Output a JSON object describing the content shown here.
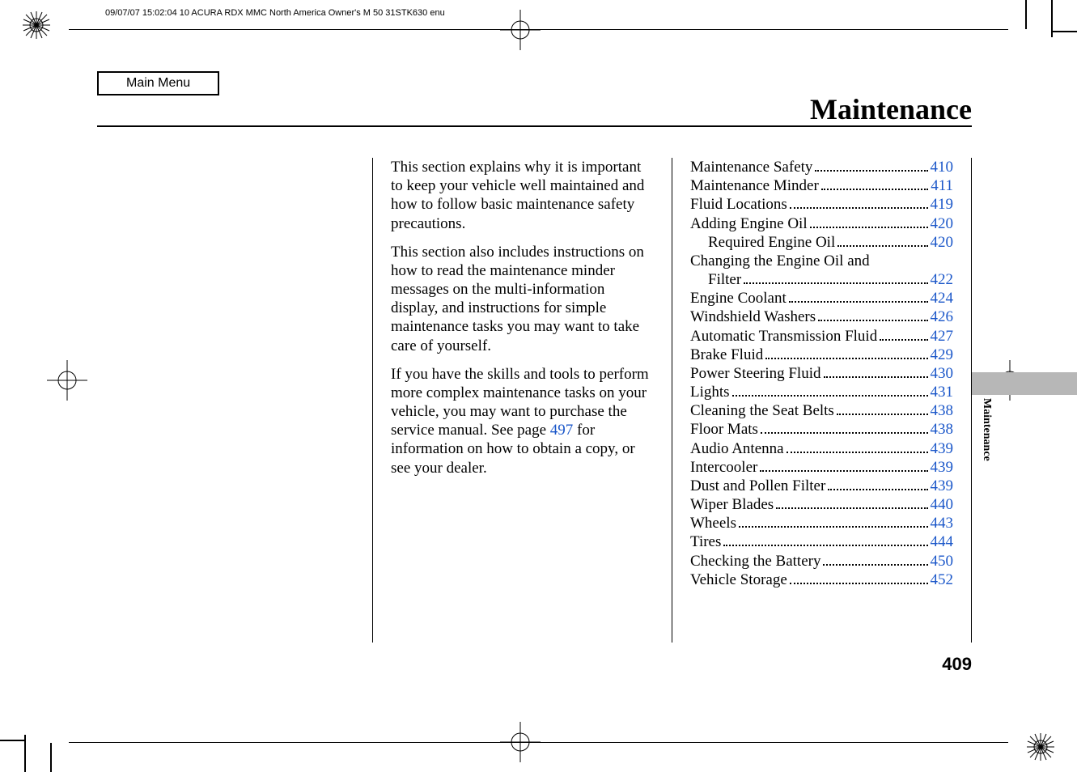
{
  "print_header": "09/07/07 15:02:04   10 ACURA RDX MMC North America Owner's M 50 31STK630 enu",
  "main_menu_label": "Main Menu",
  "section_title": "Maintenance",
  "side_tab_label": "Maintenance",
  "page_number": "409",
  "link_color": "#1b57c9",
  "body": {
    "para1": "This section explains why it is important to keep your vehicle well maintained and how to follow basic maintenance safety precautions.",
    "para2": "This section also includes instructions on how to read the maintenance minder messages on the multi-information display, and instructions for simple maintenance tasks you may want to take care of yourself.",
    "para3_a": "If you have the skills and tools to perform more complex maintenance tasks on your vehicle, you may want to purchase the service manual. See page ",
    "para3_link": "497",
    "para3_b": " for information on how to obtain a copy, or see your dealer."
  },
  "toc": [
    {
      "label": "Maintenance Safety",
      "page": "410",
      "indent": false
    },
    {
      "label": "Maintenance Minder",
      "page": "411",
      "indent": false
    },
    {
      "label": "Fluid Locations",
      "page": "419",
      "indent": false
    },
    {
      "label": "Adding Engine Oil",
      "page": "420",
      "indent": false
    },
    {
      "label": "Required Engine Oil",
      "page": "420",
      "indent": true
    },
    {
      "label": "Changing the Engine Oil and Filter",
      "page": "422",
      "indent": false,
      "wrap": true
    },
    {
      "label": "Engine Coolant",
      "page": "424",
      "indent": false
    },
    {
      "label": "Windshield Washers",
      "page": "426",
      "indent": false
    },
    {
      "label": "Automatic Transmission Fluid",
      "page": "427",
      "indent": false,
      "tight": true
    },
    {
      "label": "Brake Fluid",
      "page": "429",
      "indent": false
    },
    {
      "label": "Power Steering Fluid",
      "page": "430",
      "indent": false
    },
    {
      "label": "Lights",
      "page": "431",
      "indent": false
    },
    {
      "label": "Cleaning the Seat Belts",
      "page": "438",
      "indent": false
    },
    {
      "label": "Floor Mats",
      "page": "438",
      "indent": false
    },
    {
      "label": "Audio Antenna",
      "page": "439",
      "indent": false
    },
    {
      "label": "Intercooler",
      "page": "439",
      "indent": false
    },
    {
      "label": "Dust and Pollen Filter",
      "page": "439",
      "indent": false
    },
    {
      "label": "Wiper Blades",
      "page": "440",
      "indent": false
    },
    {
      "label": "Wheels",
      "page": "443",
      "indent": false
    },
    {
      "label": "Tires",
      "page": "444",
      "indent": false
    },
    {
      "label": "Checking the Battery",
      "page": "450",
      "indent": false
    },
    {
      "label": "Vehicle Storage",
      "page": "452",
      "indent": false
    }
  ]
}
